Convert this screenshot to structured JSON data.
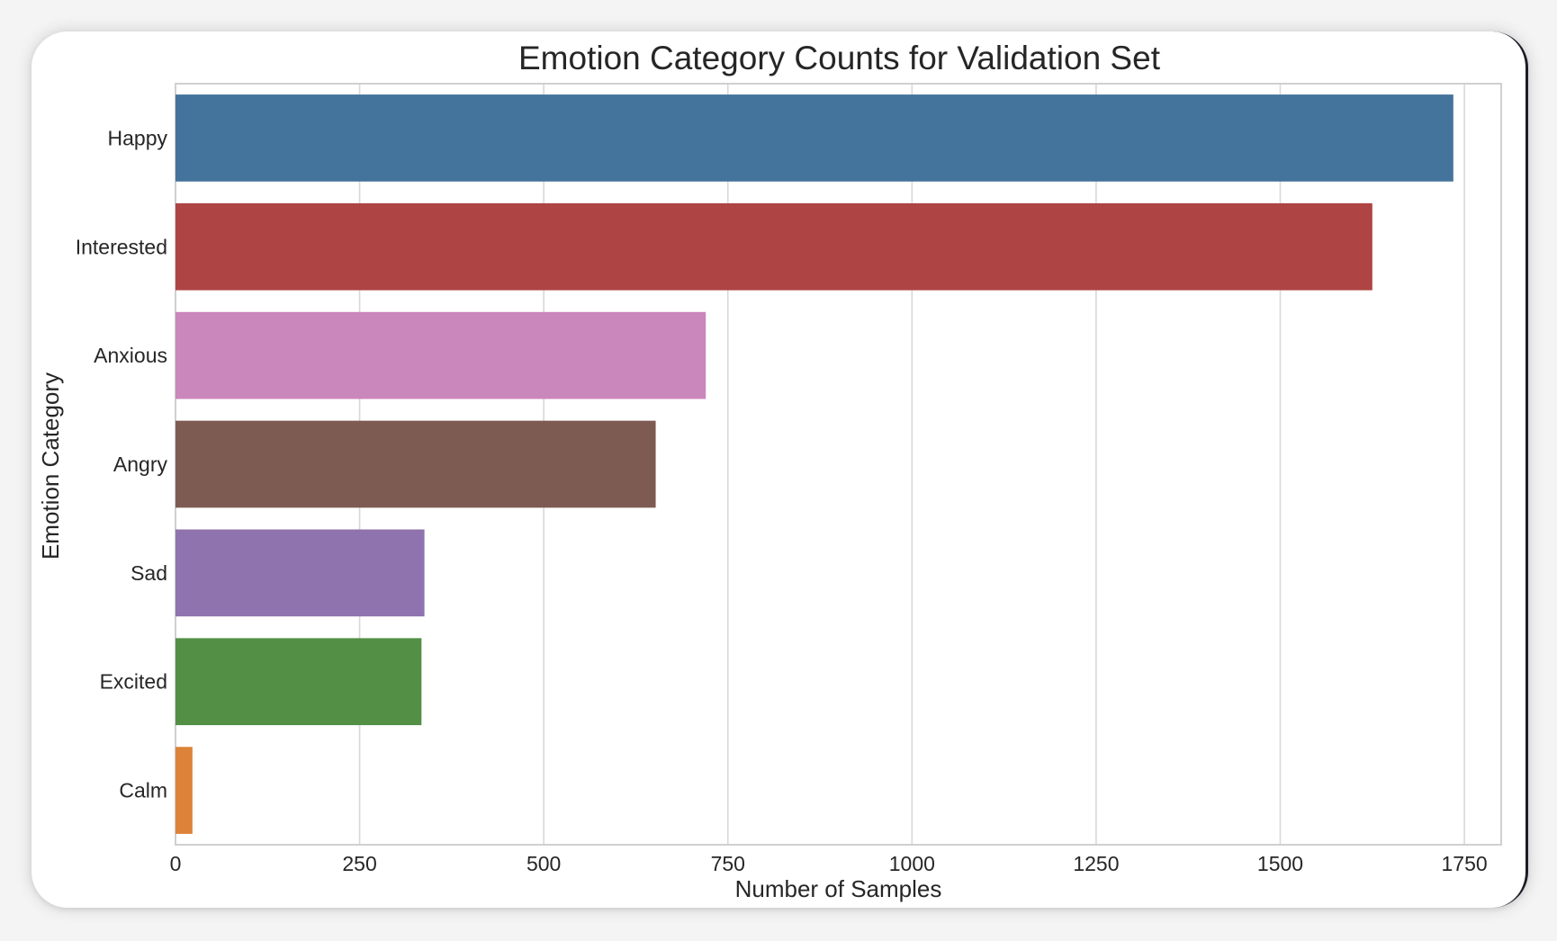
{
  "chart_data": {
    "type": "bar",
    "orientation": "horizontal",
    "title": "Emotion Category Counts for Validation Set",
    "xlabel": "Number of Samples",
    "ylabel": "Emotion Category",
    "categories": [
      "Happy",
      "Interested",
      "Anxious",
      "Angry",
      "Sad",
      "Excited",
      "Calm"
    ],
    "values": [
      1735,
      1625,
      720,
      652,
      338,
      334,
      23
    ],
    "colors": [
      "#44739b",
      "#ae4443",
      "#ca87bb",
      "#7d5b52",
      "#8e73ae",
      "#538f45",
      "#dc8339"
    ],
    "xlim": [
      0,
      1800
    ],
    "xticks": [
      0,
      250,
      500,
      750,
      1000,
      1250,
      1500,
      1750
    ],
    "grid": true,
    "legend": "none"
  }
}
